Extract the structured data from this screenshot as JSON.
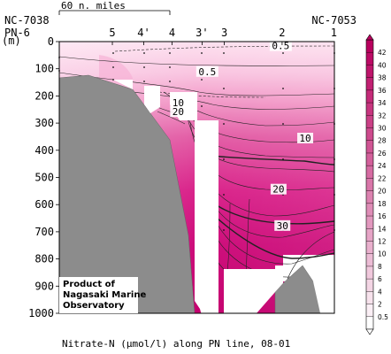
{
  "chart_data": {
    "type": "heatmap",
    "title": "Nitrate-N (µmol/l) along PN line, 08-01",
    "ylabel": "(m)",
    "ylim": [
      0,
      1000
    ],
    "yticks": [
      0,
      100,
      200,
      300,
      400,
      500,
      600,
      700,
      800,
      900,
      1000
    ],
    "scale_label": "60 n. miles",
    "stations": [
      {
        "label": "PN-6",
        "sub": "NC-7038",
        "pos": 0.0
      },
      {
        "label": "5",
        "sub": "",
        "pos": 0.193
      },
      {
        "label": "4'",
        "sub": "",
        "pos": 0.307
      },
      {
        "label": "4",
        "sub": "",
        "pos": 0.41
      },
      {
        "label": "3'",
        "sub": "",
        "pos": 0.519
      },
      {
        "label": "3",
        "sub": "",
        "pos": 0.6
      },
      {
        "label": "2",
        "sub": "",
        "pos": 0.81
      },
      {
        "label": "1",
        "sub": "NC-7053",
        "pos": 1.0
      }
    ],
    "contour_labels": [
      {
        "text": "0.5",
        "depth": 15,
        "pos": 0.805
      },
      {
        "text": "0.5",
        "depth": 110,
        "pos": 0.538
      },
      {
        "text": "10",
        "depth": 225,
        "pos": 0.432
      },
      {
        "text": "20",
        "depth": 258,
        "pos": 0.432
      },
      {
        "text": "10",
        "depth": 355,
        "pos": 0.894
      },
      {
        "text": "20",
        "depth": 543,
        "pos": 0.797
      },
      {
        "text": "30",
        "depth": 677,
        "pos": 0.811
      }
    ],
    "colorbar": {
      "min": 0,
      "max": 44,
      "ticks": [
        0.5,
        2,
        4,
        6,
        8,
        10,
        12,
        14,
        16,
        18,
        20,
        22,
        24,
        26,
        28,
        30,
        32,
        34,
        36,
        38,
        40,
        42
      ],
      "low_color": "#ffffff",
      "high_color": "#b8005e"
    },
    "credit": [
      "Product of",
      "Nagasaki Marine",
      "Observatory"
    ]
  }
}
